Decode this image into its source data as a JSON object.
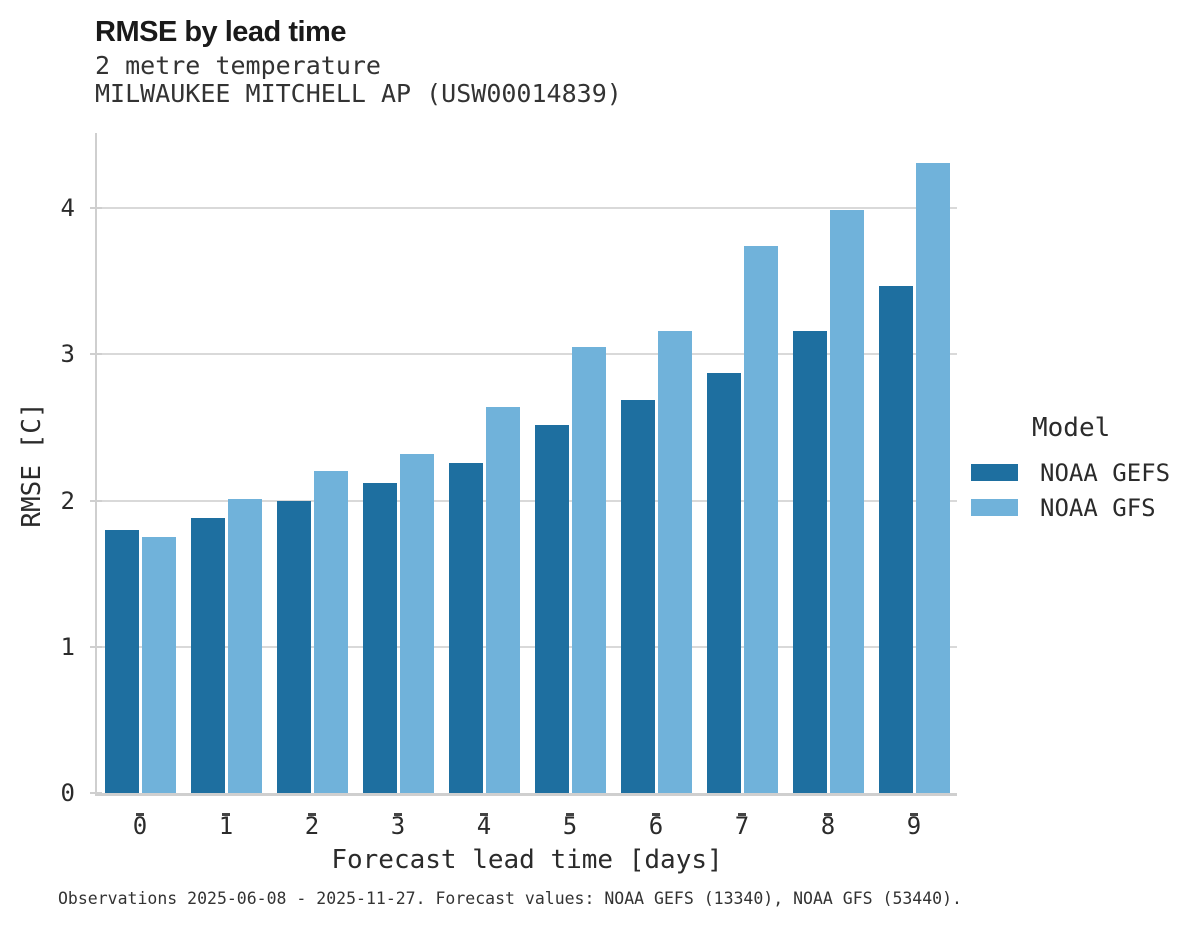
{
  "header": {
    "title": "RMSE by lead time",
    "subtitle1": "2 metre temperature",
    "subtitle2": "MILWAUKEE MITCHELL AP (USW00014839)"
  },
  "legend": {
    "title": "Model",
    "items": [
      {
        "label": "NOAA GEFS",
        "color": "#1e6fa0"
      },
      {
        "label": "NOAA GFS",
        "color": "#70b2da"
      }
    ]
  },
  "caption": "Observations 2025-06-08 - 2025-11-27. Forecast values: NOAA GEFS (13340), NOAA GFS (53440).",
  "colors": {
    "gefs_bar": "#1e6fa0",
    "gfs_bar": "#70b2da",
    "gridline": "#d9d9d9",
    "spine": "#cfcfcf",
    "text": "#2b2b2b"
  },
  "chart_data": {
    "type": "bar",
    "title": "RMSE by lead time",
    "subtitle": [
      "2 metre temperature",
      "MILWAUKEE MITCHELL AP (USW00014839)"
    ],
    "categories": [
      "0",
      "1",
      "2",
      "3",
      "4",
      "5",
      "6",
      "7",
      "8",
      "9"
    ],
    "series": [
      {
        "name": "NOAA GEFS",
        "color": "#1e6fa0",
        "values": [
          1.8,
          1.88,
          2.0,
          2.12,
          2.26,
          2.52,
          2.69,
          2.87,
          3.16,
          3.47
        ]
      },
      {
        "name": "NOAA GFS",
        "color": "#70b2da",
        "values": [
          1.75,
          2.01,
          2.2,
          2.32,
          2.64,
          3.05,
          3.16,
          3.74,
          3.99,
          4.31
        ]
      }
    ],
    "xlabel": "Forecast lead time [days]",
    "ylabel": "RMSE [C]",
    "yticks": [
      0,
      1,
      2,
      3,
      4
    ],
    "ylim": [
      0,
      4.515
    ],
    "grid": "horizontal",
    "legend_title": "Model",
    "legend_position": "center-right"
  }
}
